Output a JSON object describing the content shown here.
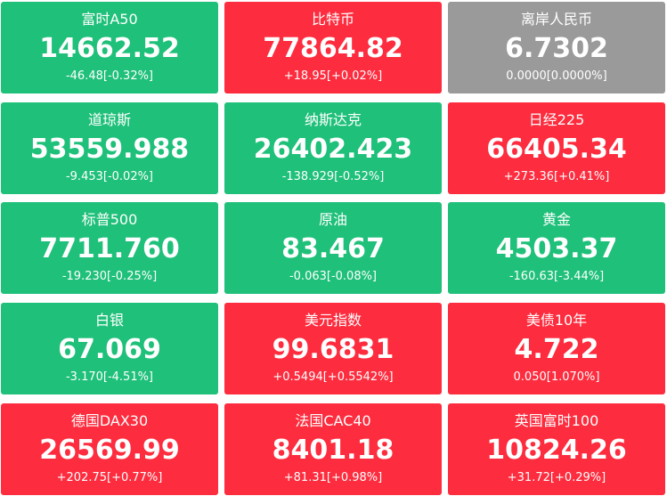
{
  "tiles": [
    {
      "name": "富时A50",
      "price": "14662.52",
      "change": "-46.48[-0.32%]",
      "color": "#1fc07a"
    },
    {
      "name": "比特币",
      "price": "77864.82",
      "change": "+18.95[+0.02%]",
      "color": "#fd2c3e"
    },
    {
      "name": "离岸人民币",
      "price": "6.7302",
      "change": "0.0000[0.0000%]",
      "color": "#9a9a9a"
    },
    {
      "name": "道琼斯",
      "price": "53559.988",
      "change": "-9.453[-0.02%]",
      "color": "#1fc07a"
    },
    {
      "name": "纳斯达克",
      "price": "26402.423",
      "change": "-138.929[-0.52%]",
      "color": "#1fc07a"
    },
    {
      "name": "日经225",
      "price": "66405.34",
      "change": "+273.36[+0.41%]",
      "color": "#fd2c3e"
    },
    {
      "name": "标普500",
      "price": "7711.760",
      "change": "-19.230[-0.25%]",
      "color": "#1fc07a"
    },
    {
      "name": "原油",
      "price": "83.467",
      "change": "-0.063[-0.08%]",
      "color": "#1fc07a"
    },
    {
      "name": "黄金",
      "price": "4503.37",
      "change": "-160.63[-3.44%]",
      "color": "#1fc07a"
    },
    {
      "name": "白银",
      "price": "67.069",
      "change": "-3.170[-4.51%]",
      "color": "#1fc07a"
    },
    {
      "name": "美元指数",
      "price": "99.6831",
      "change": "+0.5494[+0.5542%]",
      "color": "#fd2c3e"
    },
    {
      "name": "美债10年",
      "price": "4.722",
      "change": "0.050[1.070%]",
      "color": "#fd2c3e"
    },
    {
      "name": "德国DAX30",
      "price": "26569.99",
      "change": "+202.75[+0.77%]",
      "color": "#fd2c3e"
    },
    {
      "name": "法国CAC40",
      "price": "8401.18",
      "change": "+81.31[+0.98%]",
      "color": "#fd2c3e"
    },
    {
      "name": "英国富时100",
      "price": "10824.26",
      "change": "+31.72[+0.29%]",
      "color": "#fd2c3e"
    }
  ]
}
